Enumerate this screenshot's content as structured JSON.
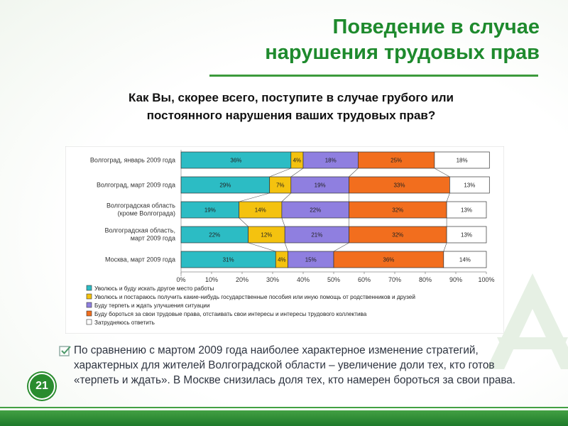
{
  "slide": {
    "title_line1": "Поведение в случае",
    "title_line2": "нарушения трудовых прав",
    "question_line1": "Как Вы, скорее всего, поступите в случае грубого или",
    "question_line2": "постоянного нарушения ваших трудовых прав?",
    "body": "По сравнению с мартом 2009 года наиболее характерное изменение стратегий, характерных для жителей Волгоградской области – увеличение доли тех, кто готов «терпеть и ждать». В Москве снизилась доля тех, кто намерен бороться за свои права.",
    "page_number": "21",
    "bullet_icon": "checkbox-icon"
  },
  "chart_data": {
    "type": "bar",
    "stacked": true,
    "orientation": "horizontal",
    "categories": [
      "Волгоград, январь 2009 года",
      "Волгоград, март 2009 года",
      "Волгоградская область (кроме Волгограда)",
      "Волгоградская область, март 2009 года",
      "Москва, март 2009 года"
    ],
    "series": [
      {
        "name": "Уволюсь и буду искать другое место работы",
        "color": "#2cbcc4",
        "values": [
          36,
          29,
          19,
          22,
          31
        ]
      },
      {
        "name": "Уволюсь и постараюсь получить какие-нибудь государственные пособия или иную помощь от родственников и друзей",
        "color": "#f4c20f",
        "values": [
          4,
          7,
          14,
          12,
          4
        ]
      },
      {
        "name": "Буду терпеть и ждать улучшения ситуации",
        "color": "#8f7fe0",
        "values": [
          18,
          19,
          22,
          21,
          15
        ]
      },
      {
        "name": "Буду бороться за свои трудовые права, отстаивать свои интересы и интересы трудового коллектива",
        "color": "#f26e1e",
        "values": [
          25,
          33,
          32,
          32,
          36
        ]
      },
      {
        "name": "Затрудняюсь ответить",
        "color": "#ffffff",
        "values": [
          18,
          13,
          13,
          13,
          14
        ]
      }
    ],
    "xlim": [
      0,
      100
    ],
    "xticks": [
      "0%",
      "10%",
      "20%",
      "30%",
      "40%",
      "50%",
      "60%",
      "70%",
      "80%",
      "90%",
      "100%"
    ],
    "legend_position": "bottom"
  }
}
